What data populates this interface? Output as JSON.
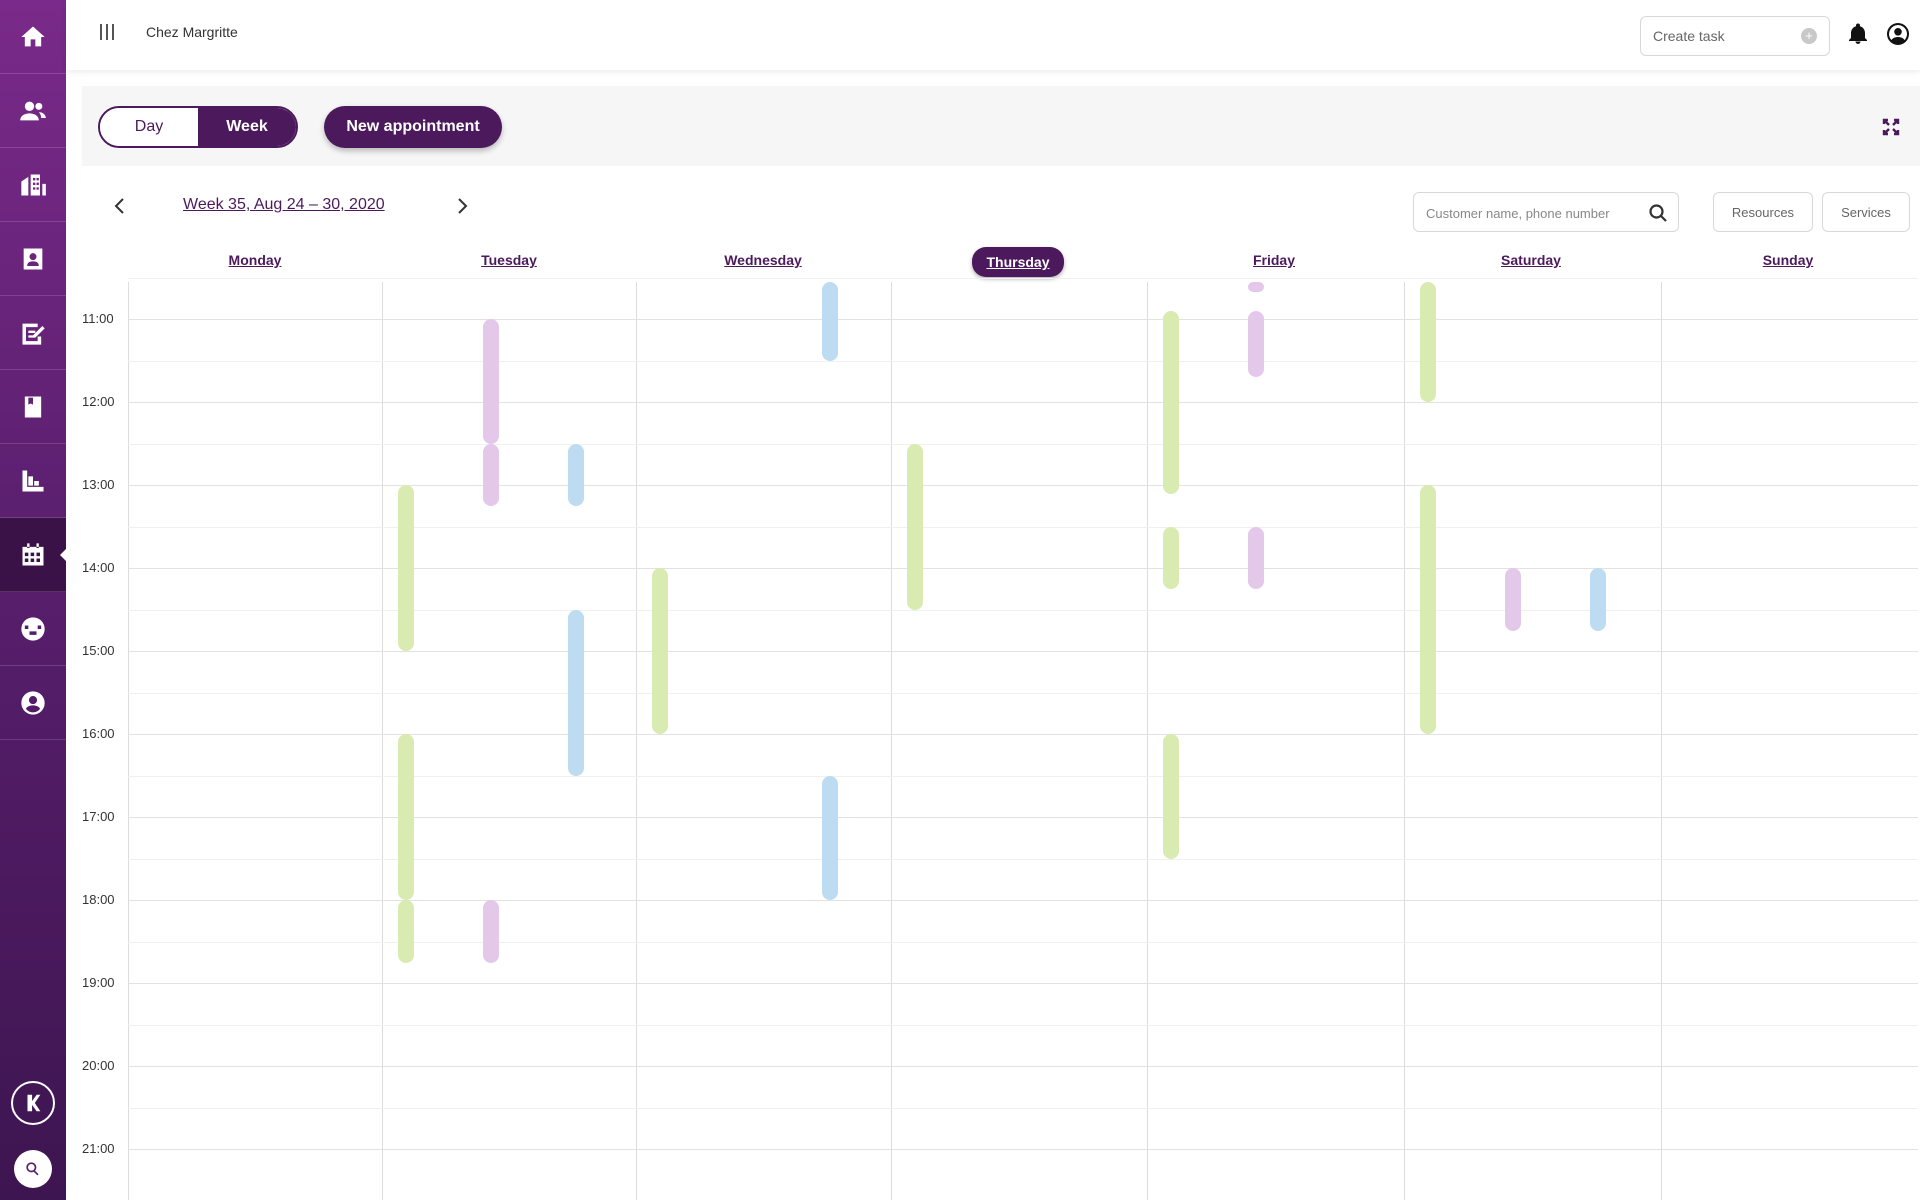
{
  "colors": {
    "primary": "#4c1a5c",
    "green": "#d9ebb0",
    "purple": "#e3c8ea",
    "blue": "#bddcf1"
  },
  "topbar": {
    "org_name": "Chez Margritte",
    "create_task_label": "Create task",
    "create_task_icon": "plus-circle-icon"
  },
  "toolbar": {
    "day_label": "Day",
    "week_label": "Week",
    "new_appointment_label": "New appointment"
  },
  "nav": {
    "week_label": "Week 35, Aug 24 – 30, 2020"
  },
  "search": {
    "placeholder": "Customer name, phone number"
  },
  "buttons": {
    "resources": "Resources",
    "services": "Services"
  },
  "sidebar": {
    "items": [
      "home-icon",
      "customers-icon",
      "buildings-icon",
      "contacts-icon",
      "tasks-icon",
      "book-icon",
      "reports-icon",
      "calendar-icon",
      "globe-icon",
      "profile-icon"
    ],
    "active": "calendar-icon"
  },
  "days": [
    "Monday",
    "Tuesday",
    "Wednesday",
    "Thursday",
    "Friday",
    "Saturday",
    "Sunday"
  ],
  "today": "Thursday",
  "hours": [
    "11:00",
    "12:00",
    "13:00",
    "14:00",
    "15:00",
    "16:00",
    "17:00",
    "18:00",
    "19:00",
    "20:00",
    "21:00"
  ],
  "appointments": [
    {
      "day": 1,
      "lane": 0,
      "start": 13.0,
      "end": 15.0,
      "color": "green"
    },
    {
      "day": 1,
      "lane": 0,
      "start": 16.0,
      "end": 18.0,
      "color": "green"
    },
    {
      "day": 1,
      "lane": 0,
      "start": 18.0,
      "end": 18.75,
      "color": "green"
    },
    {
      "day": 1,
      "lane": 1,
      "start": 11.0,
      "end": 12.5,
      "color": "purple"
    },
    {
      "day": 1,
      "lane": 1,
      "start": 12.5,
      "end": 13.25,
      "color": "purple"
    },
    {
      "day": 1,
      "lane": 1,
      "start": 18.0,
      "end": 18.75,
      "color": "purple"
    },
    {
      "day": 1,
      "lane": 2,
      "start": 12.5,
      "end": 13.25,
      "color": "blue"
    },
    {
      "day": 1,
      "lane": 2,
      "start": 14.5,
      "end": 16.5,
      "color": "blue"
    },
    {
      "day": 2,
      "lane": 0,
      "start": 14.0,
      "end": 16.0,
      "color": "green"
    },
    {
      "day": 2,
      "lane": 2,
      "start": 10.0,
      "end": 11.5,
      "color": "blue"
    },
    {
      "day": 2,
      "lane": 2,
      "start": 16.5,
      "end": 18.0,
      "color": "blue"
    },
    {
      "day": 3,
      "lane": 0,
      "start": 12.5,
      "end": 14.5,
      "color": "green"
    },
    {
      "day": 4,
      "lane": 0,
      "start": 10.9,
      "end": 13.1,
      "color": "green"
    },
    {
      "day": 4,
      "lane": 0,
      "start": 13.5,
      "end": 14.25,
      "color": "green"
    },
    {
      "day": 4,
      "lane": 0,
      "start": 16.0,
      "end": 17.5,
      "color": "green"
    },
    {
      "day": 4,
      "lane": 1,
      "start": 10.0,
      "end": 10.2,
      "color": "purple"
    },
    {
      "day": 4,
      "lane": 1,
      "start": 10.9,
      "end": 11.7,
      "color": "purple"
    },
    {
      "day": 4,
      "lane": 1,
      "start": 13.5,
      "end": 14.25,
      "color": "purple"
    },
    {
      "day": 5,
      "lane": 0,
      "start": 10.0,
      "end": 12.0,
      "color": "green"
    },
    {
      "day": 5,
      "lane": 0,
      "start": 13.0,
      "end": 16.0,
      "color": "green"
    },
    {
      "day": 5,
      "lane": 1,
      "start": 14.0,
      "end": 14.75,
      "color": "purple"
    },
    {
      "day": 5,
      "lane": 2,
      "start": 14.0,
      "end": 14.75,
      "color": "blue"
    }
  ]
}
